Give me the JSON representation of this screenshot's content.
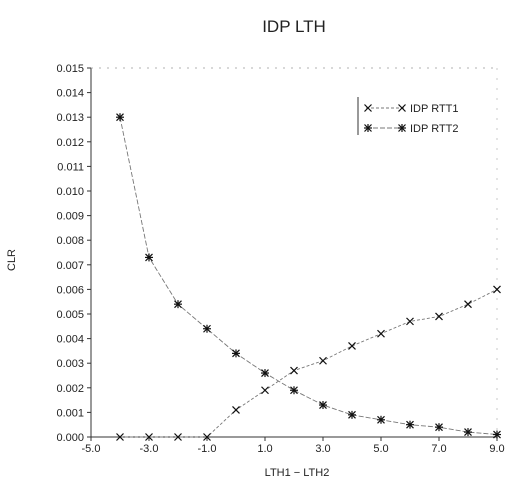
{
  "chart_data": {
    "type": "line",
    "title": "IDP LTH",
    "xlabel": "LTH1 − LTH2",
    "ylabel": "CLR",
    "xlim": [
      -5.0,
      9.0
    ],
    "ylim": [
      0.0,
      0.015
    ],
    "xticks": [
      -5.0,
      -3.0,
      -1.0,
      1.0,
      3.0,
      5.0,
      7.0,
      9.0
    ],
    "xtick_labels": [
      "-5.0",
      "-3.0",
      "-1.0",
      "1.0",
      "3.0",
      "5.0",
      "7.0",
      "9.0"
    ],
    "yticks": [
      0.0,
      0.001,
      0.002,
      0.003,
      0.004,
      0.005,
      0.006,
      0.007,
      0.008,
      0.009,
      0.01,
      0.011,
      0.012,
      0.013,
      0.014,
      0.015
    ],
    "ytick_labels": [
      "0.000",
      "0.001",
      "0.002",
      "0.003",
      "0.004",
      "0.005",
      "0.006",
      "0.007",
      "0.008",
      "0.009",
      "0.010",
      "0.011",
      "0.012",
      "0.013",
      "0.014",
      "0.015"
    ],
    "grid": false,
    "legend_position": "top-right",
    "series": [
      {
        "name": "IDP RTT1",
        "marker": "x",
        "x": [
          -4,
          -3,
          -2,
          -1,
          0,
          1,
          2,
          3,
          4,
          5,
          6,
          7,
          8,
          9
        ],
        "y": [
          0.0,
          0.0,
          0.0,
          0.0,
          0.0011,
          0.0019,
          0.0027,
          0.0031,
          0.0037,
          0.0042,
          0.0047,
          0.0049,
          0.0054,
          0.006
        ]
      },
      {
        "name": "IDP RTT2",
        "marker": "asterisk",
        "x": [
          -4,
          -3,
          -2,
          -1,
          0,
          1,
          2,
          3,
          4,
          5,
          6,
          7,
          8,
          9
        ],
        "y": [
          0.013,
          0.0073,
          0.0054,
          0.0044,
          0.0034,
          0.0026,
          0.0019,
          0.0013,
          0.0009,
          0.0007,
          0.0005,
          0.0004,
          0.0002,
          0.0001
        ]
      }
    ]
  }
}
